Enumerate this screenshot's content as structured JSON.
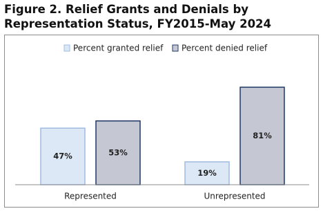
{
  "chart_data": {
    "type": "bar",
    "title": "Figure 2. Relief Grants and Denials by Representation Status, FY2015-May 2024",
    "categories": [
      "Represented",
      "Unrepresented"
    ],
    "series": [
      {
        "name": "Percent granted relief",
        "color": "#dce8f6",
        "values": [
          47,
          19
        ],
        "value_labels": [
          "47%",
          "19%"
        ]
      },
      {
        "name": "Percent denied relief",
        "color": "#c5c7d3",
        "values": [
          53,
          81
        ],
        "value_labels": [
          "53%",
          "81%"
        ]
      }
    ],
    "legend": "top"
  }
}
